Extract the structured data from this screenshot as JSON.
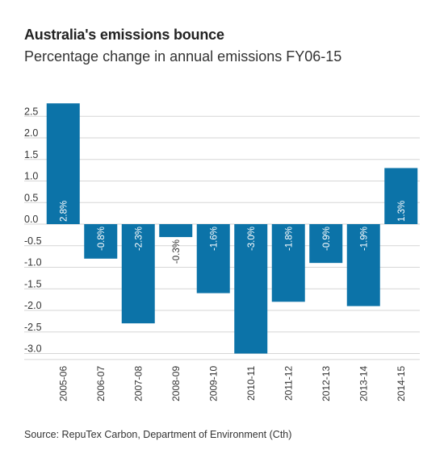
{
  "title": "Australia's emissions bounce",
  "subtitle": "Percentage change in annual emissions FY06-15",
  "source": "Source: RepuTex Carbon, Department of Environment (Cth)",
  "colors": {
    "bar": "#0c73a8",
    "label_inside": "#ffffff",
    "label_outside": "#333333"
  },
  "chart_data": {
    "type": "bar",
    "title": "Australia's emissions bounce",
    "subtitle": "Percentage change in annual emissions FY06-15",
    "categories": [
      "2005-06",
      "2006-07",
      "2007-08",
      "2008-09",
      "2009-10",
      "2010-11",
      "2011-12",
      "2012-13",
      "2013-14",
      "2014-15"
    ],
    "values": [
      2.8,
      -0.8,
      -2.3,
      -0.3,
      -1.6,
      -3.0,
      -1.8,
      -0.9,
      -1.9,
      1.3
    ],
    "data_labels": [
      "2.8%",
      "-0.8%",
      "-2.3%",
      "-0.3%",
      "-1.6%",
      "-3.0%",
      "-1.8%",
      "-0.9%",
      "-1.9%",
      "1.3%"
    ],
    "yticks": [
      "2.5",
      "2.0",
      "1.5",
      "1.0",
      "0.5",
      "0.0",
      "-0.5",
      "-1.0",
      "-1.5",
      "-2.0",
      "-2.5",
      "-3.0"
    ],
    "ylim": [
      -3.1,
      2.8
    ],
    "xlabel": "",
    "ylabel": "",
    "grid": true,
    "legend": "none"
  }
}
